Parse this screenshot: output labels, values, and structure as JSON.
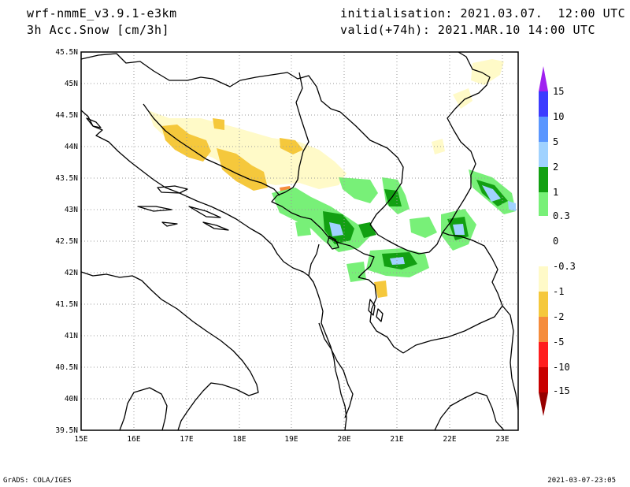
{
  "header": {
    "model": "wrf-nmmE_v3.9.1-e3km",
    "variable": "3h Acc.Snow [cm/3h]",
    "init": "initialisation: 2021.03.07.  12:00 UTC",
    "valid": "valid(+74h): 2021.MAR.10 14:00 UTC"
  },
  "footer": {
    "left": "GrADS: COLA/IGES",
    "right": "2021-03-07-23:05"
  },
  "map": {
    "lon_labels": [
      "15E",
      "16E",
      "17E",
      "18E",
      "19E",
      "20E",
      "21E",
      "22E",
      "23E"
    ],
    "lat_labels": [
      "45.5N",
      "45N",
      "44.5N",
      "44N",
      "43.5N",
      "43N",
      "42.5N",
      "42N",
      "41.5N",
      "41N",
      "40.5N",
      "40N",
      "39.5N"
    ],
    "lon_range": [
      15,
      23.3
    ],
    "lat_range": [
      39.5,
      45.5
    ],
    "grid": true
  },
  "colorbar": {
    "labels": [
      "15",
      "10",
      "5",
      "2",
      "1",
      "0.3",
      "0",
      "-0.3",
      "-1",
      "-2",
      "-5",
      "-10",
      "-15"
    ],
    "colors": [
      "#a020f0",
      "#3c3cff",
      "#5a96ff",
      "#a0d2ff",
      "#12a012",
      "#32c832",
      "#78f078",
      "#ffffff",
      "#fffac8",
      "#f5c83c",
      "#f58c3c",
      "#ff1e1e",
      "#c80000",
      "#960000"
    ]
  }
}
